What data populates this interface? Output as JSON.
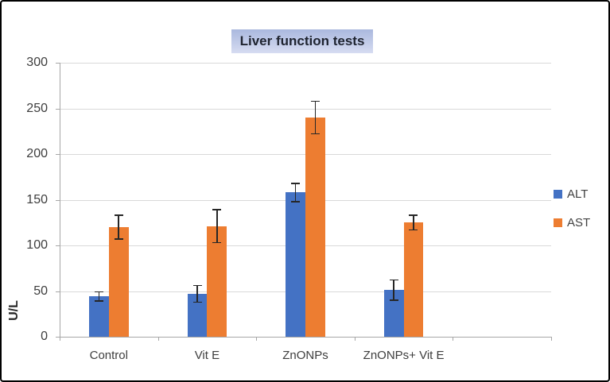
{
  "chart_data": {
    "type": "bar",
    "title": "Liver function tests",
    "xlabel": "",
    "ylabel": "U/L",
    "categories": [
      "Control",
      "Vit E",
      "ZnONPs",
      "ZnONPs+ Vit E"
    ],
    "series": [
      {
        "name": "ALT",
        "color": "#4472C4",
        "values": [
          44,
          47,
          158,
          51
        ],
        "errors": [
          5,
          9,
          10,
          11
        ]
      },
      {
        "name": "AST",
        "color": "#ED7D31",
        "values": [
          120,
          121,
          240,
          125
        ],
        "errors": [
          13,
          18,
          18,
          8
        ]
      }
    ],
    "ylim": [
      0,
      300
    ],
    "yticks": [
      0,
      50,
      100,
      150,
      200,
      250,
      300
    ],
    "grid": true,
    "legend_position": "right",
    "extra_empty_category_slots": 1
  },
  "style": {
    "gridline_color": "#d9d9d9",
    "axis_color": "#a6a6a6",
    "tick_label_color": "#3d3d3d",
    "error_bar_color": "#262626",
    "title_text_color": "#1f2430",
    "title_bg_top": "#aab8de",
    "title_bg_bottom": "#d6dcf1",
    "figure_border_color": "#000000",
    "background": "#ffffff"
  }
}
